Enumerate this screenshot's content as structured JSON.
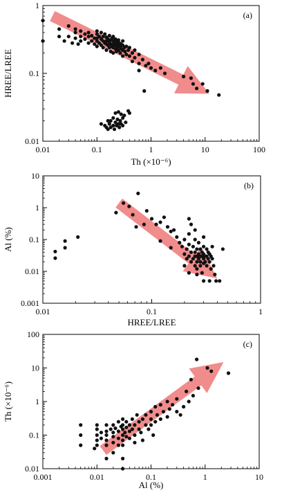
{
  "chart_data": [
    {
      "type": "scatter",
      "panel_label": "(a)",
      "xlabel": "Th (×10⁻⁶)",
      "ylabel": "HREE/LREE",
      "xscale": "log",
      "yscale": "log",
      "xlim": [
        0.01,
        100
      ],
      "ylim": [
        0.01,
        1
      ],
      "xticks": [
        0.01,
        0.1,
        1,
        10,
        100
      ],
      "xtick_labels": [
        "0.01",
        "0.1",
        "1",
        "10",
        "100"
      ],
      "yticks": [
        0.01,
        0.1,
        1
      ],
      "ytick_labels": [
        "0.01",
        "0.1",
        "1"
      ],
      "trend_arrow": {
        "from": [
          0.015,
          0.7
        ],
        "to": [
          12,
          0.05
        ],
        "color": "#f08080"
      },
      "points": [
        [
          0.01,
          0.6
        ],
        [
          0.01,
          0.3
        ],
        [
          0.02,
          0.45
        ],
        [
          0.02,
          0.35
        ],
        [
          0.025,
          0.3
        ],
        [
          0.03,
          0.5
        ],
        [
          0.03,
          0.35
        ],
        [
          0.035,
          0.28
        ],
        [
          0.04,
          0.45
        ],
        [
          0.04,
          0.4
        ],
        [
          0.04,
          0.33
        ],
        [
          0.045,
          0.27
        ],
        [
          0.05,
          0.42
        ],
        [
          0.05,
          0.35
        ],
        [
          0.05,
          0.3
        ],
        [
          0.06,
          0.38
        ],
        [
          0.06,
          0.32
        ],
        [
          0.07,
          0.4
        ],
        [
          0.07,
          0.35
        ],
        [
          0.07,
          0.28
        ],
        [
          0.08,
          0.36
        ],
        [
          0.08,
          0.3
        ],
        [
          0.09,
          0.33
        ],
        [
          0.09,
          0.27
        ],
        [
          0.1,
          0.42
        ],
        [
          0.1,
          0.38
        ],
        [
          0.1,
          0.33
        ],
        [
          0.1,
          0.3
        ],
        [
          0.1,
          0.25
        ],
        [
          0.11,
          0.35
        ],
        [
          0.11,
          0.28
        ],
        [
          0.12,
          0.4
        ],
        [
          0.12,
          0.32
        ],
        [
          0.12,
          0.26
        ],
        [
          0.13,
          0.35
        ],
        [
          0.13,
          0.3
        ],
        [
          0.13,
          0.24
        ],
        [
          0.14,
          0.38
        ],
        [
          0.14,
          0.28
        ],
        [
          0.15,
          0.34
        ],
        [
          0.15,
          0.3
        ],
        [
          0.15,
          0.27
        ],
        [
          0.15,
          0.22
        ],
        [
          0.16,
          0.32
        ],
        [
          0.16,
          0.26
        ],
        [
          0.17,
          0.36
        ],
        [
          0.17,
          0.29
        ],
        [
          0.17,
          0.24
        ],
        [
          0.18,
          0.31
        ],
        [
          0.18,
          0.27
        ],
        [
          0.18,
          0.21
        ],
        [
          0.19,
          0.33
        ],
        [
          0.19,
          0.25
        ],
        [
          0.2,
          0.35
        ],
        [
          0.2,
          0.3
        ],
        [
          0.2,
          0.27
        ],
        [
          0.2,
          0.24
        ],
        [
          0.2,
          0.2
        ],
        [
          0.21,
          0.28
        ],
        [
          0.22,
          0.32
        ],
        [
          0.22,
          0.26
        ],
        [
          0.22,
          0.23
        ],
        [
          0.23,
          0.29
        ],
        [
          0.23,
          0.21
        ],
        [
          0.24,
          0.27
        ],
        [
          0.24,
          0.24
        ],
        [
          0.25,
          0.31
        ],
        [
          0.25,
          0.26
        ],
        [
          0.25,
          0.22
        ],
        [
          0.26,
          0.28
        ],
        [
          0.27,
          0.25
        ],
        [
          0.27,
          0.2
        ],
        [
          0.28,
          0.27
        ],
        [
          0.28,
          0.23
        ],
        [
          0.3,
          0.3
        ],
        [
          0.3,
          0.26
        ],
        [
          0.3,
          0.22
        ],
        [
          0.3,
          0.18
        ],
        [
          0.32,
          0.24
        ],
        [
          0.33,
          0.21
        ],
        [
          0.35,
          0.25
        ],
        [
          0.35,
          0.19
        ],
        [
          0.38,
          0.22
        ],
        [
          0.4,
          0.24
        ],
        [
          0.4,
          0.18
        ],
        [
          0.45,
          0.2
        ],
        [
          0.45,
          0.15
        ],
        [
          0.5,
          0.22
        ],
        [
          0.5,
          0.17
        ],
        [
          0.6,
          0.19
        ],
        [
          0.6,
          0.14
        ],
        [
          0.7,
          0.16
        ],
        [
          0.8,
          0.13
        ],
        [
          0.9,
          0.14
        ],
        [
          1,
          0.12
        ],
        [
          1.2,
          0.11
        ],
        [
          1.5,
          0.12
        ],
        [
          1.8,
          0.1
        ],
        [
          0.6,
          0.11
        ],
        [
          0.75,
          0.055
        ],
        [
          4,
          0.09
        ],
        [
          5.5,
          0.085
        ],
        [
          6,
          0.07
        ],
        [
          7,
          0.06
        ],
        [
          9,
          0.07
        ],
        [
          11,
          0.055
        ],
        [
          18,
          0.048
        ],
        [
          0.12,
          0.018
        ],
        [
          0.14,
          0.017
        ],
        [
          0.15,
          0.016
        ],
        [
          0.16,
          0.02
        ],
        [
          0.16,
          0.015
        ],
        [
          0.17,
          0.018
        ],
        [
          0.18,
          0.02
        ],
        [
          0.18,
          0.016
        ],
        [
          0.2,
          0.017
        ],
        [
          0.2,
          0.022
        ],
        [
          0.21,
          0.015
        ],
        [
          0.22,
          0.019
        ],
        [
          0.23,
          0.017
        ],
        [
          0.24,
          0.021
        ],
        [
          0.25,
          0.018
        ],
        [
          0.26,
          0.016
        ],
        [
          0.27,
          0.02
        ],
        [
          0.28,
          0.018
        ],
        [
          0.3,
          0.022
        ],
        [
          0.3,
          0.017
        ],
        [
          0.32,
          0.024
        ],
        [
          0.34,
          0.019
        ],
        [
          0.38,
          0.028
        ],
        [
          0.4,
          0.026
        ],
        [
          0.28,
          0.025
        ],
        [
          0.22,
          0.026
        ],
        [
          0.25,
          0.027
        ]
      ]
    },
    {
      "type": "scatter",
      "panel_label": "(b)",
      "xlabel": "HREE/LREE",
      "ylabel": "Al (%)",
      "xscale": "log",
      "yscale": "log",
      "xlim": [
        0.01,
        1
      ],
      "ylim": [
        0.001,
        10
      ],
      "xticks": [
        0.01,
        0.1,
        1
      ],
      "xtick_labels": [
        "0.01",
        "0.1",
        "1"
      ],
      "yticks": [
        0.001,
        0.01,
        0.1,
        1,
        10
      ],
      "ytick_labels": [
        "0.001",
        "0.01",
        "0.1",
        "1",
        "10"
      ],
      "trend_arrow": {
        "from": [
          0.05,
          1.4
        ],
        "to": [
          0.4,
          0.006
        ],
        "color": "#f08080"
      },
      "points": [
        [
          0.013,
          0.042
        ],
        [
          0.013,
          0.026
        ],
        [
          0.016,
          0.09
        ],
        [
          0.016,
          0.055
        ],
        [
          0.021,
          0.12
        ],
        [
          0.047,
          0.7
        ],
        [
          0.055,
          1.4
        ],
        [
          0.062,
          1.1
        ],
        [
          0.067,
          0.6
        ],
        [
          0.075,
          2.8
        ],
        [
          0.072,
          0.25
        ],
        [
          0.085,
          0.3
        ],
        [
          0.09,
          0.8
        ],
        [
          0.1,
          0.45
        ],
        [
          0.11,
          0.3
        ],
        [
          0.12,
          0.35
        ],
        [
          0.13,
          0.5
        ],
        [
          0.14,
          0.25
        ],
        [
          0.15,
          0.18
        ],
        [
          0.16,
          0.2
        ],
        [
          0.17,
          0.12
        ],
        [
          0.12,
          0.09
        ],
        [
          0.15,
          0.055
        ],
        [
          0.18,
          0.08
        ],
        [
          0.19,
          0.06
        ],
        [
          0.2,
          0.1
        ],
        [
          0.2,
          0.035
        ],
        [
          0.2,
          0.015
        ],
        [
          0.21,
          0.05
        ],
        [
          0.21,
          0.025
        ],
        [
          0.22,
          0.45
        ],
        [
          0.22,
          0.15
        ],
        [
          0.22,
          0.07
        ],
        [
          0.22,
          0.03
        ],
        [
          0.22,
          0.009
        ],
        [
          0.23,
          0.3
        ],
        [
          0.23,
          0.04
        ],
        [
          0.23,
          0.02
        ],
        [
          0.24,
          0.06
        ],
        [
          0.24,
          0.025
        ],
        [
          0.25,
          0.2
        ],
        [
          0.25,
          0.1
        ],
        [
          0.25,
          0.04
        ],
        [
          0.25,
          0.03
        ],
        [
          0.25,
          0.015
        ],
        [
          0.26,
          0.05
        ],
        [
          0.26,
          0.03
        ],
        [
          0.26,
          0.02
        ],
        [
          0.26,
          0.012
        ],
        [
          0.27,
          0.08
        ],
        [
          0.27,
          0.035
        ],
        [
          0.27,
          0.025
        ],
        [
          0.28,
          0.05
        ],
        [
          0.28,
          0.03
        ],
        [
          0.28,
          0.02
        ],
        [
          0.28,
          0.015
        ],
        [
          0.29,
          0.04
        ],
        [
          0.29,
          0.03
        ],
        [
          0.29,
          0.009
        ],
        [
          0.3,
          0.12
        ],
        [
          0.3,
          0.06
        ],
        [
          0.3,
          0.035
        ],
        [
          0.3,
          0.025
        ],
        [
          0.3,
          0.018
        ],
        [
          0.31,
          0.03
        ],
        [
          0.31,
          0.02
        ],
        [
          0.32,
          0.05
        ],
        [
          0.32,
          0.03
        ],
        [
          0.32,
          0.015
        ],
        [
          0.33,
          0.04
        ],
        [
          0.33,
          0.025
        ],
        [
          0.34,
          0.035
        ],
        [
          0.34,
          0.02
        ],
        [
          0.35,
          0.03
        ],
        [
          0.35,
          0.012
        ],
        [
          0.36,
          0.025
        ],
        [
          0.37,
          0.015
        ],
        [
          0.38,
          0.008
        ],
        [
          0.39,
          0.005
        ],
        [
          0.42,
          0.005
        ],
        [
          0.45,
          0.05
        ],
        [
          0.36,
          0.06
        ],
        [
          0.3,
          0.005
        ],
        [
          0.34,
          0.005
        ],
        [
          0.26,
          0.008
        ]
      ]
    },
    {
      "type": "scatter",
      "panel_label": "(c)",
      "xlabel": "Al (%)",
      "ylabel": "Th (×10⁻⁶)",
      "xscale": "log",
      "yscale": "log",
      "xlim": [
        0.001,
        10
      ],
      "ylim": [
        0.01,
        100
      ],
      "xticks": [
        0.001,
        0.01,
        0.1,
        1,
        10
      ],
      "xtick_labels": [
        "0.001",
        "0.01",
        "0.1",
        "1",
        "10"
      ],
      "yticks": [
        0.01,
        0.1,
        1,
        10,
        100
      ],
      "ytick_labels": [
        "0.01",
        "0.1",
        "1",
        "10",
        "100"
      ],
      "trend_arrow": {
        "from": [
          0.013,
          0.035
        ],
        "to": [
          2.2,
          15
        ],
        "color": "#f08080"
      },
      "points": [
        [
          0.005,
          0.2
        ],
        [
          0.005,
          0.1
        ],
        [
          0.005,
          0.05
        ],
        [
          0.009,
          0.04
        ],
        [
          0.01,
          0.2
        ],
        [
          0.01,
          0.15
        ],
        [
          0.01,
          0.1
        ],
        [
          0.01,
          0.07
        ],
        [
          0.01,
          0.05
        ],
        [
          0.012,
          0.12
        ],
        [
          0.012,
          0.08
        ],
        [
          0.015,
          0.2
        ],
        [
          0.015,
          0.13
        ],
        [
          0.015,
          0.1
        ],
        [
          0.015,
          0.07
        ],
        [
          0.015,
          0.05
        ],
        [
          0.015,
          0.02
        ],
        [
          0.018,
          0.15
        ],
        [
          0.02,
          0.2
        ],
        [
          0.02,
          0.12
        ],
        [
          0.02,
          0.09
        ],
        [
          0.02,
          0.06
        ],
        [
          0.02,
          0.03
        ],
        [
          0.022,
          0.16
        ],
        [
          0.025,
          0.25
        ],
        [
          0.025,
          0.13
        ],
        [
          0.025,
          0.08
        ],
        [
          0.025,
          0.05
        ],
        [
          0.028,
          0.18
        ],
        [
          0.03,
          0.3
        ],
        [
          0.03,
          0.2
        ],
        [
          0.03,
          0.15
        ],
        [
          0.03,
          0.1
        ],
        [
          0.03,
          0.07
        ],
        [
          0.03,
          0.05
        ],
        [
          0.03,
          0.02
        ],
        [
          0.03,
          0.01
        ],
        [
          0.033,
          0.12
        ],
        [
          0.035,
          0.25
        ],
        [
          0.035,
          0.17
        ],
        [
          0.035,
          0.09
        ],
        [
          0.04,
          0.2
        ],
        [
          0.04,
          0.13
        ],
        [
          0.04,
          0.08
        ],
        [
          0.045,
          0.3
        ],
        [
          0.045,
          0.15
        ],
        [
          0.05,
          0.2
        ],
        [
          0.05,
          0.1
        ],
        [
          0.05,
          0.06
        ],
        [
          0.055,
          0.4
        ],
        [
          0.06,
          0.25
        ],
        [
          0.06,
          0.15
        ],
        [
          0.065,
          0.12
        ],
        [
          0.07,
          0.3
        ],
        [
          0.07,
          0.07
        ],
        [
          0.08,
          0.2
        ],
        [
          0.08,
          0.4
        ],
        [
          0.09,
          0.15
        ],
        [
          0.1,
          0.3
        ],
        [
          0.1,
          0.2
        ],
        [
          0.1,
          0.5
        ],
        [
          0.11,
          0.1
        ],
        [
          0.12,
          0.25
        ],
        [
          0.12,
          0.7
        ],
        [
          0.13,
          0.4
        ],
        [
          0.15,
          0.3
        ],
        [
          0.15,
          0.8
        ],
        [
          0.17,
          0.5
        ],
        [
          0.2,
          0.35
        ],
        [
          0.2,
          1.0
        ],
        [
          0.22,
          0.6
        ],
        [
          0.25,
          0.8
        ],
        [
          0.3,
          1.2
        ],
        [
          0.3,
          0.5
        ],
        [
          0.35,
          0.4
        ],
        [
          0.4,
          0.7
        ],
        [
          0.45,
          2.0
        ],
        [
          0.5,
          1.0
        ],
        [
          0.55,
          4.5
        ],
        [
          0.6,
          1.5
        ],
        [
          0.7,
          18
        ],
        [
          0.75,
          2.5
        ],
        [
          1.1,
          10
        ],
        [
          1.3,
          8
        ],
        [
          2.7,
          7
        ]
      ]
    }
  ]
}
